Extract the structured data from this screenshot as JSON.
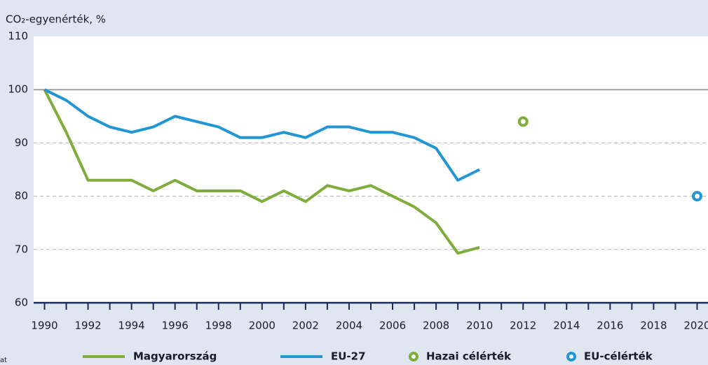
{
  "chart_data": {
    "type": "line",
    "ylabel": "CO₂-egyenérték, %",
    "footnote": "at",
    "xlim": [
      1989.5,
      2020.5
    ],
    "ylim": [
      60,
      110
    ],
    "yticks": [
      60,
      70,
      80,
      90,
      100,
      110
    ],
    "xticks": [
      1990,
      1992,
      1994,
      1996,
      1998,
      2000,
      2002,
      2004,
      2006,
      2008,
      2010,
      2012,
      2014,
      2016,
      2018,
      2020
    ],
    "grid": true,
    "series": [
      {
        "name": "Magyarország",
        "color": "#7fad3b",
        "style": "line",
        "x": [
          1990,
          1991,
          1992,
          1993,
          1994,
          1995,
          1996,
          1997,
          1998,
          1999,
          2000,
          2001,
          2002,
          2003,
          2004,
          2005,
          2006,
          2007,
          2008,
          2009,
          2010
        ],
        "values": [
          100,
          92,
          83,
          83,
          83,
          81,
          83,
          81,
          81,
          81,
          79,
          81,
          79,
          82,
          81,
          82,
          80,
          78,
          75,
          69.3,
          70.4
        ]
      },
      {
        "name": "EU-27",
        "color": "#2196d3",
        "style": "line",
        "x": [
          1990,
          1991,
          1992,
          1993,
          1994,
          1995,
          1996,
          1997,
          1998,
          1999,
          2000,
          2001,
          2002,
          2003,
          2004,
          2005,
          2006,
          2007,
          2008,
          2009,
          2010
        ],
        "values": [
          100,
          98,
          95,
          93,
          92,
          93,
          95,
          94,
          93,
          91,
          91,
          92,
          91,
          93,
          93,
          92,
          92,
          91,
          89,
          83,
          85
        ]
      },
      {
        "name": "Hazai célérték",
        "color": "#7fad3b",
        "style": "marker",
        "x": [
          2012
        ],
        "values": [
          94
        ]
      },
      {
        "name": "EU-célérték",
        "color": "#2196d3",
        "style": "marker",
        "x": [
          2020
        ],
        "values": [
          80
        ]
      }
    ]
  }
}
